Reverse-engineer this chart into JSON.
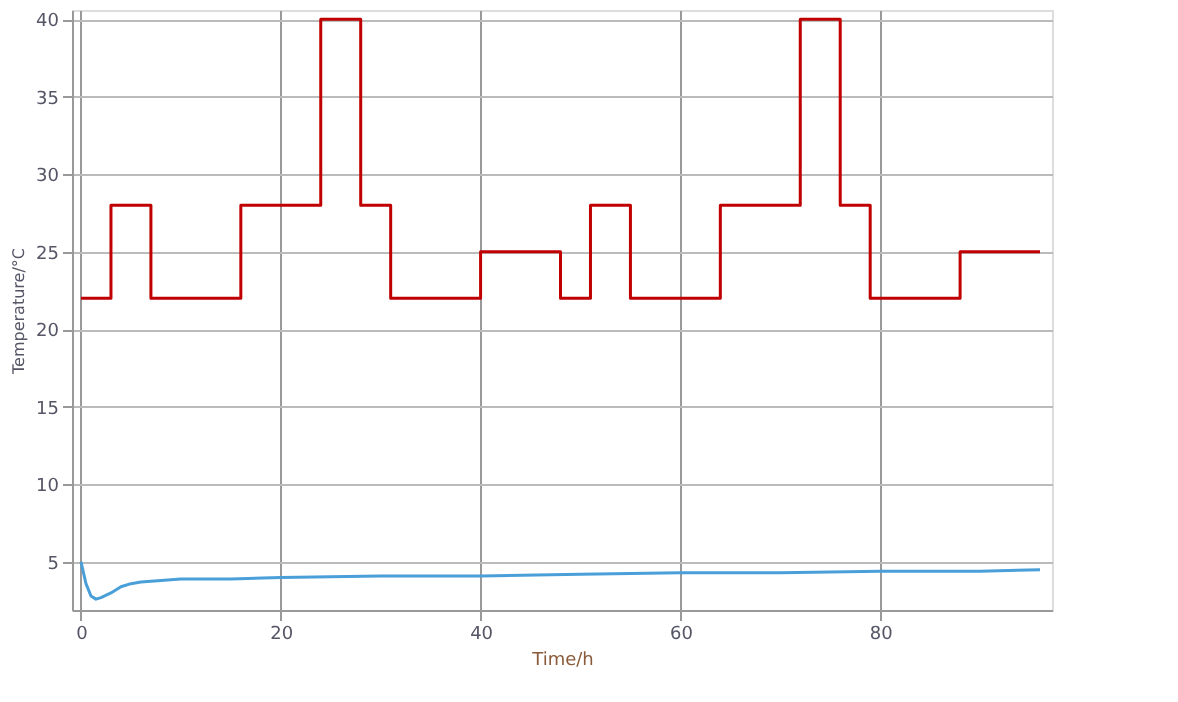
{
  "chart_data": {
    "type": "line",
    "xlabel": "Time/h",
    "ylabel": "Temperature/°C",
    "xlim": [
      -0.9,
      97.2
    ],
    "ylim": [
      1.9,
      40.6
    ],
    "xticks": [
      0,
      20,
      40,
      60,
      80
    ],
    "yticks": [
      5,
      10,
      15,
      20,
      25,
      30,
      35,
      40
    ],
    "grid": true,
    "line_style": "solid",
    "marker": "none",
    "series": [
      {
        "type": "step",
        "color": "#c00000",
        "x": [
          0,
          3,
          7,
          16,
          24,
          28,
          31,
          40,
          48,
          51,
          55,
          64,
          72,
          76,
          79,
          88,
          96
        ],
        "values": [
          22,
          28,
          22,
          28,
          40,
          28,
          22,
          25,
          22,
          28,
          22,
          28,
          40,
          28,
          22,
          25,
          25
        ]
      },
      {
        "type": "line",
        "color": "#4a9fd8",
        "x": [
          0,
          0.5,
          1,
          1.5,
          2,
          3,
          4,
          5,
          6,
          8,
          10,
          15,
          20,
          30,
          40,
          50,
          60,
          70,
          80,
          90,
          96
        ],
        "values": [
          5,
          3.6,
          2.8,
          2.6,
          2.7,
          3.0,
          3.4,
          3.6,
          3.7,
          3.8,
          3.9,
          3.9,
          4.0,
          4.1,
          4.1,
          4.2,
          4.3,
          4.3,
          4.4,
          4.4,
          4.5
        ]
      }
    ]
  }
}
